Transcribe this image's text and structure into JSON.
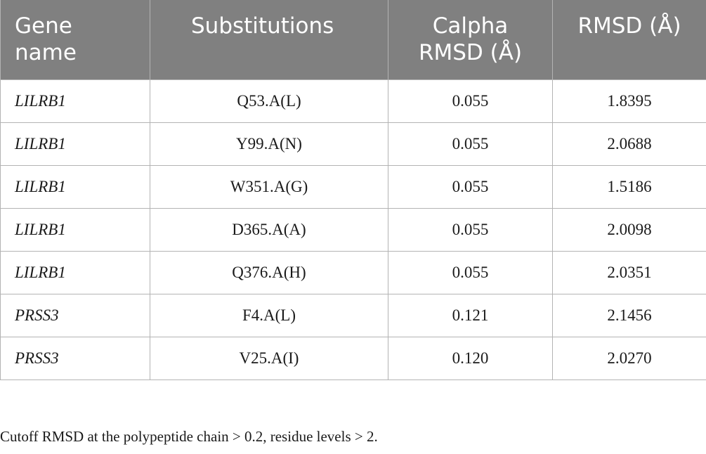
{
  "table": {
    "headers": {
      "gene_line1": "Gene",
      "gene_line2": "name",
      "substitutions": "Substitutions",
      "calpha_line1": "Calpha",
      "calpha_line2": "RMSD (Å)",
      "rmsd": "RMSD (Å)"
    },
    "rows": [
      {
        "gene": "LILRB1",
        "substitution": "Q53.A(L)",
        "calpha_rmsd": "0.055",
        "rmsd": "1.8395"
      },
      {
        "gene": "LILRB1",
        "substitution": "Y99.A(N)",
        "calpha_rmsd": "0.055",
        "rmsd": "2.0688"
      },
      {
        "gene": "LILRB1",
        "substitution": "W351.A(G)",
        "calpha_rmsd": "0.055",
        "rmsd": "1.5186"
      },
      {
        "gene": "LILRB1",
        "substitution": "D365.A(A)",
        "calpha_rmsd": "0.055",
        "rmsd": "2.0098"
      },
      {
        "gene": "LILRB1",
        "substitution": "Q376.A(H)",
        "calpha_rmsd": "0.055",
        "rmsd": "2.0351"
      },
      {
        "gene": "PRSS3",
        "substitution": "F4.A(L)",
        "calpha_rmsd": "0.121",
        "rmsd": "2.1456"
      },
      {
        "gene": "PRSS3",
        "substitution": "V25.A(I)",
        "calpha_rmsd": "0.120",
        "rmsd": "2.0270"
      }
    ]
  },
  "footnote": "Cutoff RMSD at the polypeptide chain > 0.2, residue levels > 2.",
  "colors": {
    "header_bg": "#808080",
    "header_text": "#ffffff",
    "border": "#b3b3b3"
  }
}
